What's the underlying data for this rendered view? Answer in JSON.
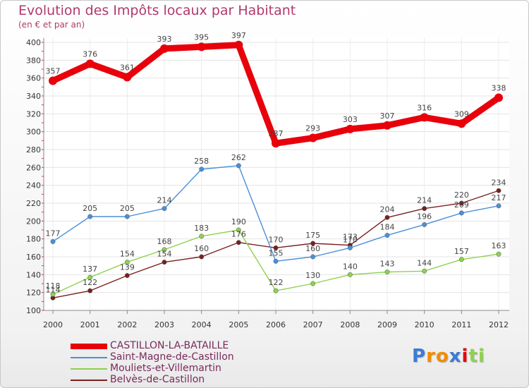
{
  "chart_data": {
    "type": "line",
    "title": "Evolution des Impôts locaux par Habitant",
    "subtitle": "(en € et par an)",
    "xlabel": "",
    "ylabel": "",
    "x": [
      "2000",
      "2001",
      "2002",
      "2003",
      "2004",
      "2005",
      "2006",
      "2007",
      "2008",
      "2009",
      "2010",
      "2011",
      "2012"
    ],
    "ylim": [
      100,
      400
    ],
    "yticks": [
      "100",
      "120",
      "140",
      "160",
      "180",
      "200",
      "220",
      "240",
      "260",
      "280",
      "300",
      "320",
      "340",
      "360",
      "380",
      "400"
    ],
    "grid": true,
    "legend_position": "bottom-left",
    "series": [
      {
        "name": "CASTILLON-LA-BATAILLE",
        "color": "#e8000b",
        "values": [
          357,
          376,
          361,
          393,
          395,
          397,
          287,
          293,
          303,
          307,
          316,
          309,
          338
        ],
        "labels": [
          "357",
          "376",
          "361",
          "393",
          "395",
          "397",
          "287",
          "293",
          "303",
          "307",
          "316",
          "309",
          "338"
        ]
      },
      {
        "name": "Saint-Magne-de-Castillon",
        "color": "#4a90d9",
        "values": [
          177,
          205,
          205,
          214,
          258,
          262,
          155,
          160,
          170,
          184,
          196,
          209,
          217
        ],
        "labels": [
          "177",
          "205",
          "205",
          "214",
          "258",
          "262",
          "155",
          "160",
          "170",
          "184",
          "196",
          "209",
          "217"
        ]
      },
      {
        "name": "Mouliets-et-Villemartin",
        "color": "#8fd14f",
        "values": [
          118,
          137,
          154,
          168,
          183,
          190,
          122,
          130,
          140,
          143,
          144,
          157,
          163
        ],
        "labels": [
          "118",
          "137",
          "154",
          "168",
          "183",
          "190",
          "122",
          "130",
          "140",
          "143",
          "144",
          "157",
          "163"
        ]
      },
      {
        "name": "Belvès-de-Castillon",
        "color": "#7a1f1f",
        "values": [
          114,
          122,
          139,
          154,
          160,
          176,
          170,
          175,
          173,
          204,
          214,
          220,
          234
        ],
        "labels": [
          "114",
          "122",
          "139",
          "154",
          "160",
          "176",
          "170",
          "175",
          "173",
          "204",
          "214",
          "220",
          "234"
        ]
      }
    ]
  },
  "logo": {
    "letters": [
      "P",
      "r",
      "o",
      "x",
      "i",
      "t",
      "i"
    ],
    "colors": [
      "#3a7bd5",
      "#f28c00",
      "#f28c00",
      "#3a7bd5",
      "#e8000b",
      "#8fd14f",
      "#8fd14f"
    ]
  }
}
